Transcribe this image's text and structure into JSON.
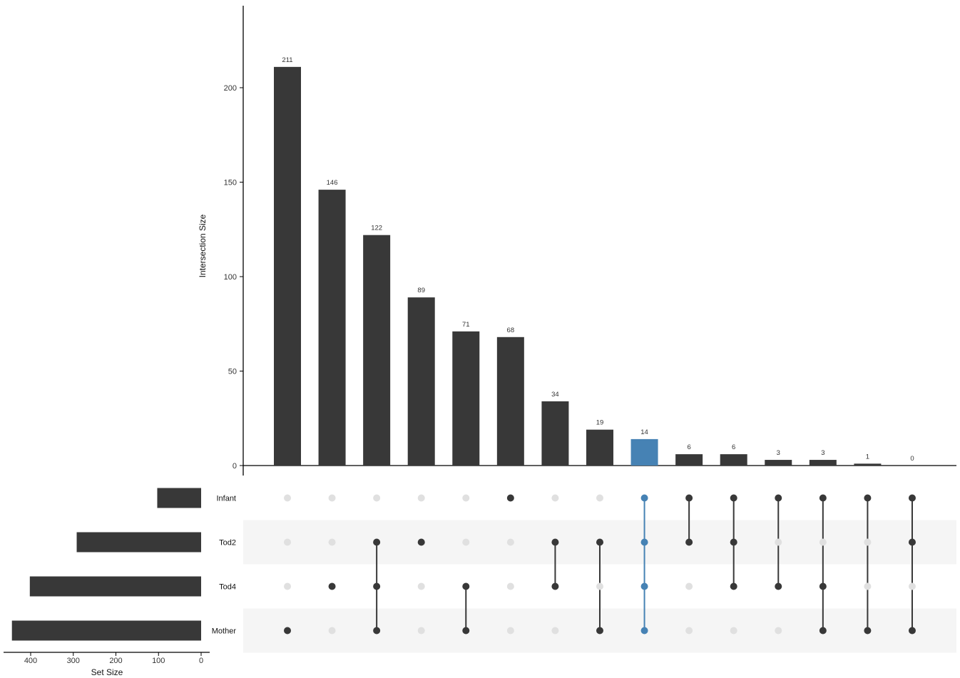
{
  "chart_data": {
    "type": "bar",
    "chart_kind": "upset",
    "ylabel": "Intersection Size",
    "xlabel_sets": "Set Size",
    "ylim": [
      0,
      240
    ],
    "yticks": [
      0,
      50,
      100,
      150,
      200
    ],
    "set_size_xlim": [
      450,
      0
    ],
    "set_size_ticks": [
      400,
      300,
      200,
      100,
      0
    ],
    "sets": [
      {
        "name": "Infant",
        "size": 103
      },
      {
        "name": "Tod2",
        "size": 292
      },
      {
        "name": "Tod4",
        "size": 402
      },
      {
        "name": "Mother",
        "size": 444
      }
    ],
    "intersections": [
      {
        "value": 211,
        "sets": [
          "Mother"
        ]
      },
      {
        "value": 146,
        "sets": [
          "Tod4"
        ]
      },
      {
        "value": 122,
        "sets": [
          "Tod2",
          "Tod4",
          "Mother"
        ]
      },
      {
        "value": 89,
        "sets": [
          "Tod2"
        ]
      },
      {
        "value": 71,
        "sets": [
          "Tod4",
          "Mother"
        ]
      },
      {
        "value": 68,
        "sets": [
          "Infant"
        ]
      },
      {
        "value": 34,
        "sets": [
          "Tod2",
          "Tod4"
        ]
      },
      {
        "value": 19,
        "sets": [
          "Tod2",
          "Mother"
        ]
      },
      {
        "value": 14,
        "sets": [
          "Infant",
          "Tod2",
          "Tod4",
          "Mother"
        ],
        "highlight": true
      },
      {
        "value": 6,
        "sets": [
          "Infant",
          "Tod2"
        ]
      },
      {
        "value": 6,
        "sets": [
          "Infant",
          "Tod2",
          "Tod4"
        ]
      },
      {
        "value": 3,
        "sets": [
          "Infant",
          "Tod4"
        ]
      },
      {
        "value": 3,
        "sets": [
          "Infant",
          "Tod4",
          "Mother"
        ]
      },
      {
        "value": 1,
        "sets": [
          "Infant",
          "Mother"
        ]
      },
      {
        "value": 0,
        "sets": [
          "Infant",
          "Tod2",
          "Mother"
        ]
      }
    ],
    "colors": {
      "bar": "#383838",
      "highlight": "#4682B4",
      "dot_inactive": "#E0E0E0",
      "stripe": "#F5F5F5"
    },
    "grid": false,
    "legend": "none"
  }
}
